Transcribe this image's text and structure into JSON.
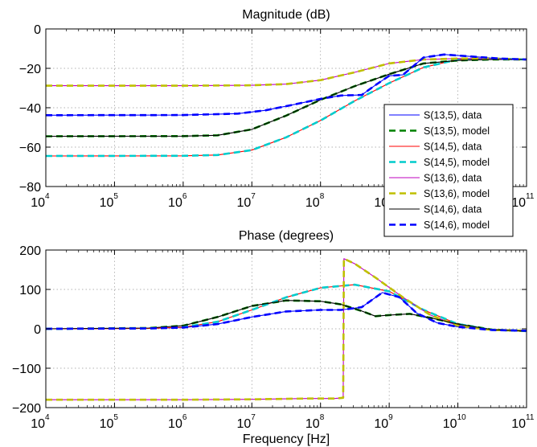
{
  "chart_data": [
    {
      "type": "line",
      "title": "Magnitude (dB)",
      "xlabel": "",
      "ylabel": "",
      "xscale": "log",
      "xlim": [
        10000,
        100000000000
      ],
      "ylim": [
        -80,
        0
      ],
      "xticks": [
        {
          "base": "10",
          "exp": "4"
        },
        {
          "base": "10",
          "exp": "5"
        },
        {
          "base": "10",
          "exp": "6"
        },
        {
          "base": "10",
          "exp": "7"
        },
        {
          "base": "10",
          "exp": "8"
        },
        {
          "base": "10",
          "exp": "9"
        },
        {
          "base": "10",
          "exp": "10"
        },
        {
          "base": "10",
          "exp": "11"
        }
      ],
      "yticks": [
        "−80",
        "−60",
        "−40",
        "−20",
        "0"
      ],
      "ytick_values": [
        -80,
        -60,
        -40,
        -20,
        0
      ],
      "grid": true,
      "legend_position": "bottom-right",
      "series": [
        {
          "name": "S(13,5), data",
          "color": "#0000ff",
          "style": "solid",
          "x": [
            4,
            6,
            6.8,
            7.2,
            7.6,
            8.0,
            8.3,
            8.6,
            8.8,
            9.0,
            9.2,
            9.5,
            9.8,
            10.2,
            10.6,
            11
          ],
          "y": [
            -43.8,
            -43.7,
            -43.0,
            -41.3,
            -38.5,
            -35.5,
            -33.8,
            -33.5,
            -28.5,
            -23.8,
            -23.3,
            -14.5,
            -13.0,
            -14.0,
            -15.0,
            -15.5
          ]
        },
        {
          "name": "S(13,5), model",
          "color": "#008000",
          "style": "dashed",
          "x": [
            4,
            6,
            6.5,
            7,
            7.5,
            8,
            8.5,
            9,
            9.5,
            10,
            10.5,
            11
          ],
          "y": [
            -54.5,
            -54.4,
            -54.0,
            -51.0,
            -44.0,
            -36.0,
            -29.0,
            -23.0,
            -17.5,
            -16.0,
            -15.5,
            -15.5
          ]
        },
        {
          "name": "S(14,5), data",
          "color": "#ff0000",
          "style": "solid",
          "x": [
            4,
            6,
            6.5,
            7,
            7.5,
            8,
            8.5,
            9,
            9.5,
            10,
            10.5,
            11
          ],
          "y": [
            -64.5,
            -64.4,
            -64.0,
            -61.5,
            -55.0,
            -46.5,
            -36.5,
            -27.5,
            -19.5,
            -15.5,
            -15.0,
            -15.5
          ]
        },
        {
          "name": "S(14,5), model",
          "color": "#00cccc",
          "style": "dashed",
          "x": [
            4,
            6,
            6.5,
            7,
            7.5,
            8,
            8.5,
            9,
            9.5,
            10,
            10.5,
            11
          ],
          "y": [
            -64.5,
            -64.4,
            -64.0,
            -61.5,
            -55.0,
            -46.5,
            -36.5,
            -27.5,
            -19.5,
            -15.5,
            -15.0,
            -15.5
          ]
        },
        {
          "name": "S(13,6), data",
          "color": "#bf00bf",
          "style": "solid",
          "x": [
            4,
            6,
            7,
            7.5,
            8,
            8.5,
            9,
            9.5,
            10,
            10.5,
            11
          ],
          "y": [
            -28.8,
            -28.8,
            -28.6,
            -28.0,
            -26.0,
            -22.0,
            -17.5,
            -15.5,
            -15.0,
            -15.0,
            -15.5
          ]
        },
        {
          "name": "S(13,6), model",
          "color": "#bfbf00",
          "style": "dashed",
          "x": [
            4,
            6,
            7,
            7.5,
            8,
            8.5,
            9,
            9.5,
            10,
            10.5,
            11
          ],
          "y": [
            -28.8,
            -28.8,
            -28.6,
            -28.0,
            -26.0,
            -22.0,
            -17.5,
            -15.5,
            -15.0,
            -15.0,
            -15.5
          ]
        },
        {
          "name": "S(14,6), data",
          "color": "#000000",
          "style": "solid",
          "x": [
            4,
            6,
            6.5,
            7,
            7.5,
            8,
            8.5,
            9,
            9.5,
            10,
            10.5,
            11
          ],
          "y": [
            -54.5,
            -54.4,
            -54.0,
            -51.0,
            -44.0,
            -36.0,
            -29.0,
            -23.0,
            -17.5,
            -16.0,
            -15.5,
            -15.5
          ]
        },
        {
          "name": "S(14,6), model",
          "color": "#0000ff",
          "style": "dashed",
          "x": [
            4,
            6,
            6.8,
            7.2,
            7.6,
            8.0,
            8.3,
            8.6,
            8.8,
            9.0,
            9.2,
            9.5,
            9.8,
            10.2,
            10.6,
            11
          ],
          "y": [
            -43.8,
            -43.7,
            -43.0,
            -41.3,
            -38.5,
            -35.5,
            -33.8,
            -33.5,
            -28.5,
            -23.8,
            -23.3,
            -14.5,
            -13.0,
            -14.0,
            -15.0,
            -15.5
          ]
        }
      ]
    },
    {
      "type": "line",
      "title": "Phase (degrees)",
      "xlabel": "Frequency [Hz]",
      "ylabel": "",
      "xscale": "log",
      "xlim": [
        10000,
        100000000000
      ],
      "ylim": [
        -200,
        200
      ],
      "xticks": [
        {
          "base": "10",
          "exp": "4"
        },
        {
          "base": "10",
          "exp": "5"
        },
        {
          "base": "10",
          "exp": "6"
        },
        {
          "base": "10",
          "exp": "7"
        },
        {
          "base": "10",
          "exp": "8"
        },
        {
          "base": "10",
          "exp": "9"
        },
        {
          "base": "10",
          "exp": "10"
        },
        {
          "base": "10",
          "exp": "11"
        }
      ],
      "yticks": [
        "−200",
        "−100",
        "0",
        "100",
        "200"
      ],
      "ytick_values": [
        -200,
        -100,
        0,
        100,
        200
      ],
      "grid": true,
      "series": [
        {
          "name": "S(13,5), data",
          "color": "#0000ff",
          "style": "solid",
          "x": [
            4,
            5.5,
            6,
            6.5,
            7,
            7.5,
            8,
            8.3,
            8.6,
            8.9,
            9.15,
            9.4,
            9.7,
            10,
            10.5,
            11
          ],
          "y": [
            0,
            1,
            3,
            12,
            30,
            44,
            48,
            48,
            55,
            92,
            80,
            40,
            15,
            5,
            -3,
            -5
          ]
        },
        {
          "name": "S(13,5), model",
          "color": "#008000",
          "style": "dashed",
          "x": [
            4,
            5.5,
            6,
            6.5,
            7,
            7.5,
            8,
            8.3,
            8.6,
            8.8,
            9.0,
            9.3,
            9.6,
            10,
            10.5,
            11
          ],
          "y": [
            0,
            2,
            8,
            30,
            58,
            72,
            70,
            62,
            45,
            32,
            35,
            38,
            28,
            12,
            -2,
            -6
          ]
        },
        {
          "name": "S(14,5), data",
          "color": "#ff0000",
          "style": "solid",
          "x": [
            4,
            5.5,
            6,
            6.5,
            7,
            7.5,
            8,
            8.5,
            9,
            9.5,
            10,
            10.5,
            11
          ],
          "y": [
            0,
            1,
            4,
            18,
            48,
            80,
            104,
            112,
            95,
            48,
            12,
            -3,
            -5
          ]
        },
        {
          "name": "S(14,5), model",
          "color": "#00cccc",
          "style": "dashed",
          "x": [
            4,
            5.5,
            6,
            6.5,
            7,
            7.5,
            8,
            8.5,
            9,
            9.5,
            10,
            10.5,
            11
          ],
          "y": [
            0,
            1,
            4,
            18,
            48,
            80,
            104,
            112,
            95,
            48,
            12,
            -3,
            -5
          ]
        },
        {
          "name": "S(13,6), data",
          "color": "#bf00bf",
          "style": "solid",
          "x": [
            4,
            6,
            7,
            7.8,
            8.2,
            8.33,
            8.34,
            8.5,
            8.8,
            9.2,
            9.6,
            10,
            10.5,
            11
          ],
          "y": [
            -180,
            -180,
            -179,
            -177,
            -177,
            -175,
            178,
            165,
            130,
            80,
            35,
            8,
            -3,
            -5
          ]
        },
        {
          "name": "S(13,6), model",
          "color": "#bfbf00",
          "style": "dashed",
          "x": [
            4,
            6,
            7,
            7.8,
            8.2,
            8.33,
            8.34,
            8.5,
            8.8,
            9.2,
            9.6,
            10,
            10.5,
            11
          ],
          "y": [
            -180,
            -180,
            -179,
            -177,
            -177,
            -175,
            178,
            165,
            130,
            80,
            35,
            8,
            -3,
            -5
          ]
        },
        {
          "name": "S(14,6), data",
          "color": "#000000",
          "style": "solid",
          "x": [
            4,
            5.5,
            6,
            6.5,
            7,
            7.5,
            8,
            8.3,
            8.6,
            8.8,
            9.0,
            9.3,
            9.6,
            10,
            10.5,
            11
          ],
          "y": [
            0,
            2,
            8,
            30,
            58,
            72,
            70,
            62,
            45,
            32,
            35,
            38,
            28,
            12,
            -2,
            -6
          ]
        },
        {
          "name": "S(14,6), model",
          "color": "#0000ff",
          "style": "dashed",
          "x": [
            4,
            5.5,
            6,
            6.5,
            7,
            7.5,
            8,
            8.3,
            8.6,
            8.9,
            9.15,
            9.4,
            9.7,
            10,
            10.5,
            11
          ],
          "y": [
            0,
            1,
            3,
            12,
            30,
            44,
            48,
            48,
            55,
            92,
            80,
            40,
            15,
            5,
            -3,
            -5
          ]
        }
      ]
    }
  ]
}
